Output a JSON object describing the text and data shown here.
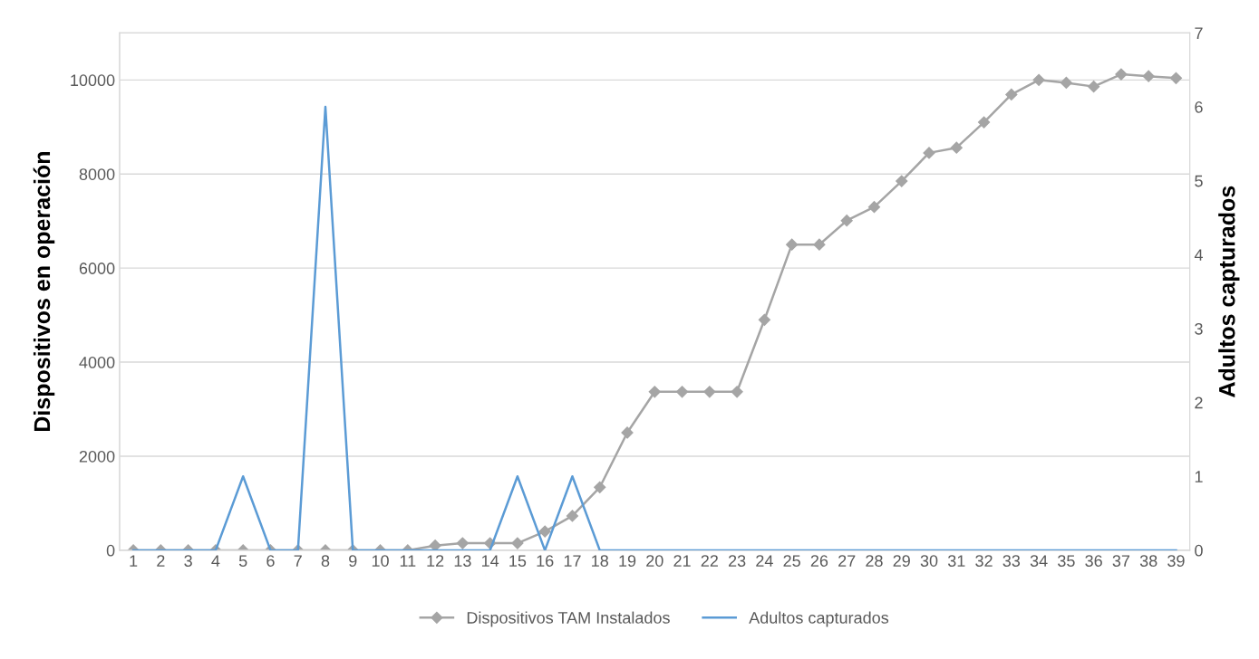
{
  "chart_data": {
    "type": "line",
    "ylabel": "Dispositivos en operación",
    "y2label": "Adultos capturados",
    "categories": [
      "1",
      "2",
      "3",
      "4",
      "5",
      "6",
      "7",
      "8",
      "9",
      "10",
      "11",
      "12",
      "13",
      "14",
      "15",
      "16",
      "17",
      "18",
      "19",
      "20",
      "21",
      "22",
      "23",
      "24",
      "25",
      "26",
      "27",
      "28",
      "29",
      "30",
      "31",
      "32",
      "33",
      "34",
      "35",
      "36",
      "37",
      "38",
      "39"
    ],
    "series": [
      {
        "name": "Dispositivos TAM Instalados",
        "color": "#a5a5a5",
        "marker": "diamond",
        "values": [
          0,
          0,
          0,
          0,
          0,
          0,
          0,
          0,
          0,
          0,
          0,
          100,
          150,
          150,
          150,
          400,
          730,
          1340,
          2500,
          3370,
          3370,
          3370,
          3370,
          4900,
          6500,
          6500,
          7010,
          7300,
          7850,
          8450,
          8560,
          9100,
          9690,
          10000,
          9940,
          9860,
          10120,
          10080,
          10040
        ]
      },
      {
        "name": "Adultos capturados",
        "color": "#5b9bd5",
        "axis": "y2",
        "marker": "none",
        "values": [
          0,
          0,
          0,
          0,
          1,
          0,
          0,
          6,
          0,
          0,
          0,
          0,
          0,
          0,
          1,
          0,
          1,
          0,
          0,
          0,
          0,
          0,
          0,
          0,
          0,
          0,
          0,
          0,
          0,
          0,
          0,
          0,
          0,
          0,
          0,
          0,
          0,
          0,
          0
        ]
      }
    ],
    "ylim": [
      0,
      11000
    ],
    "yticks": [
      0,
      2000,
      4000,
      6000,
      8000,
      10000
    ],
    "y2lim": [
      0,
      7
    ],
    "y2ticks": [
      0,
      1,
      2,
      3,
      4,
      5,
      6,
      7
    ],
    "grid": "y",
    "legend": "bottom"
  }
}
